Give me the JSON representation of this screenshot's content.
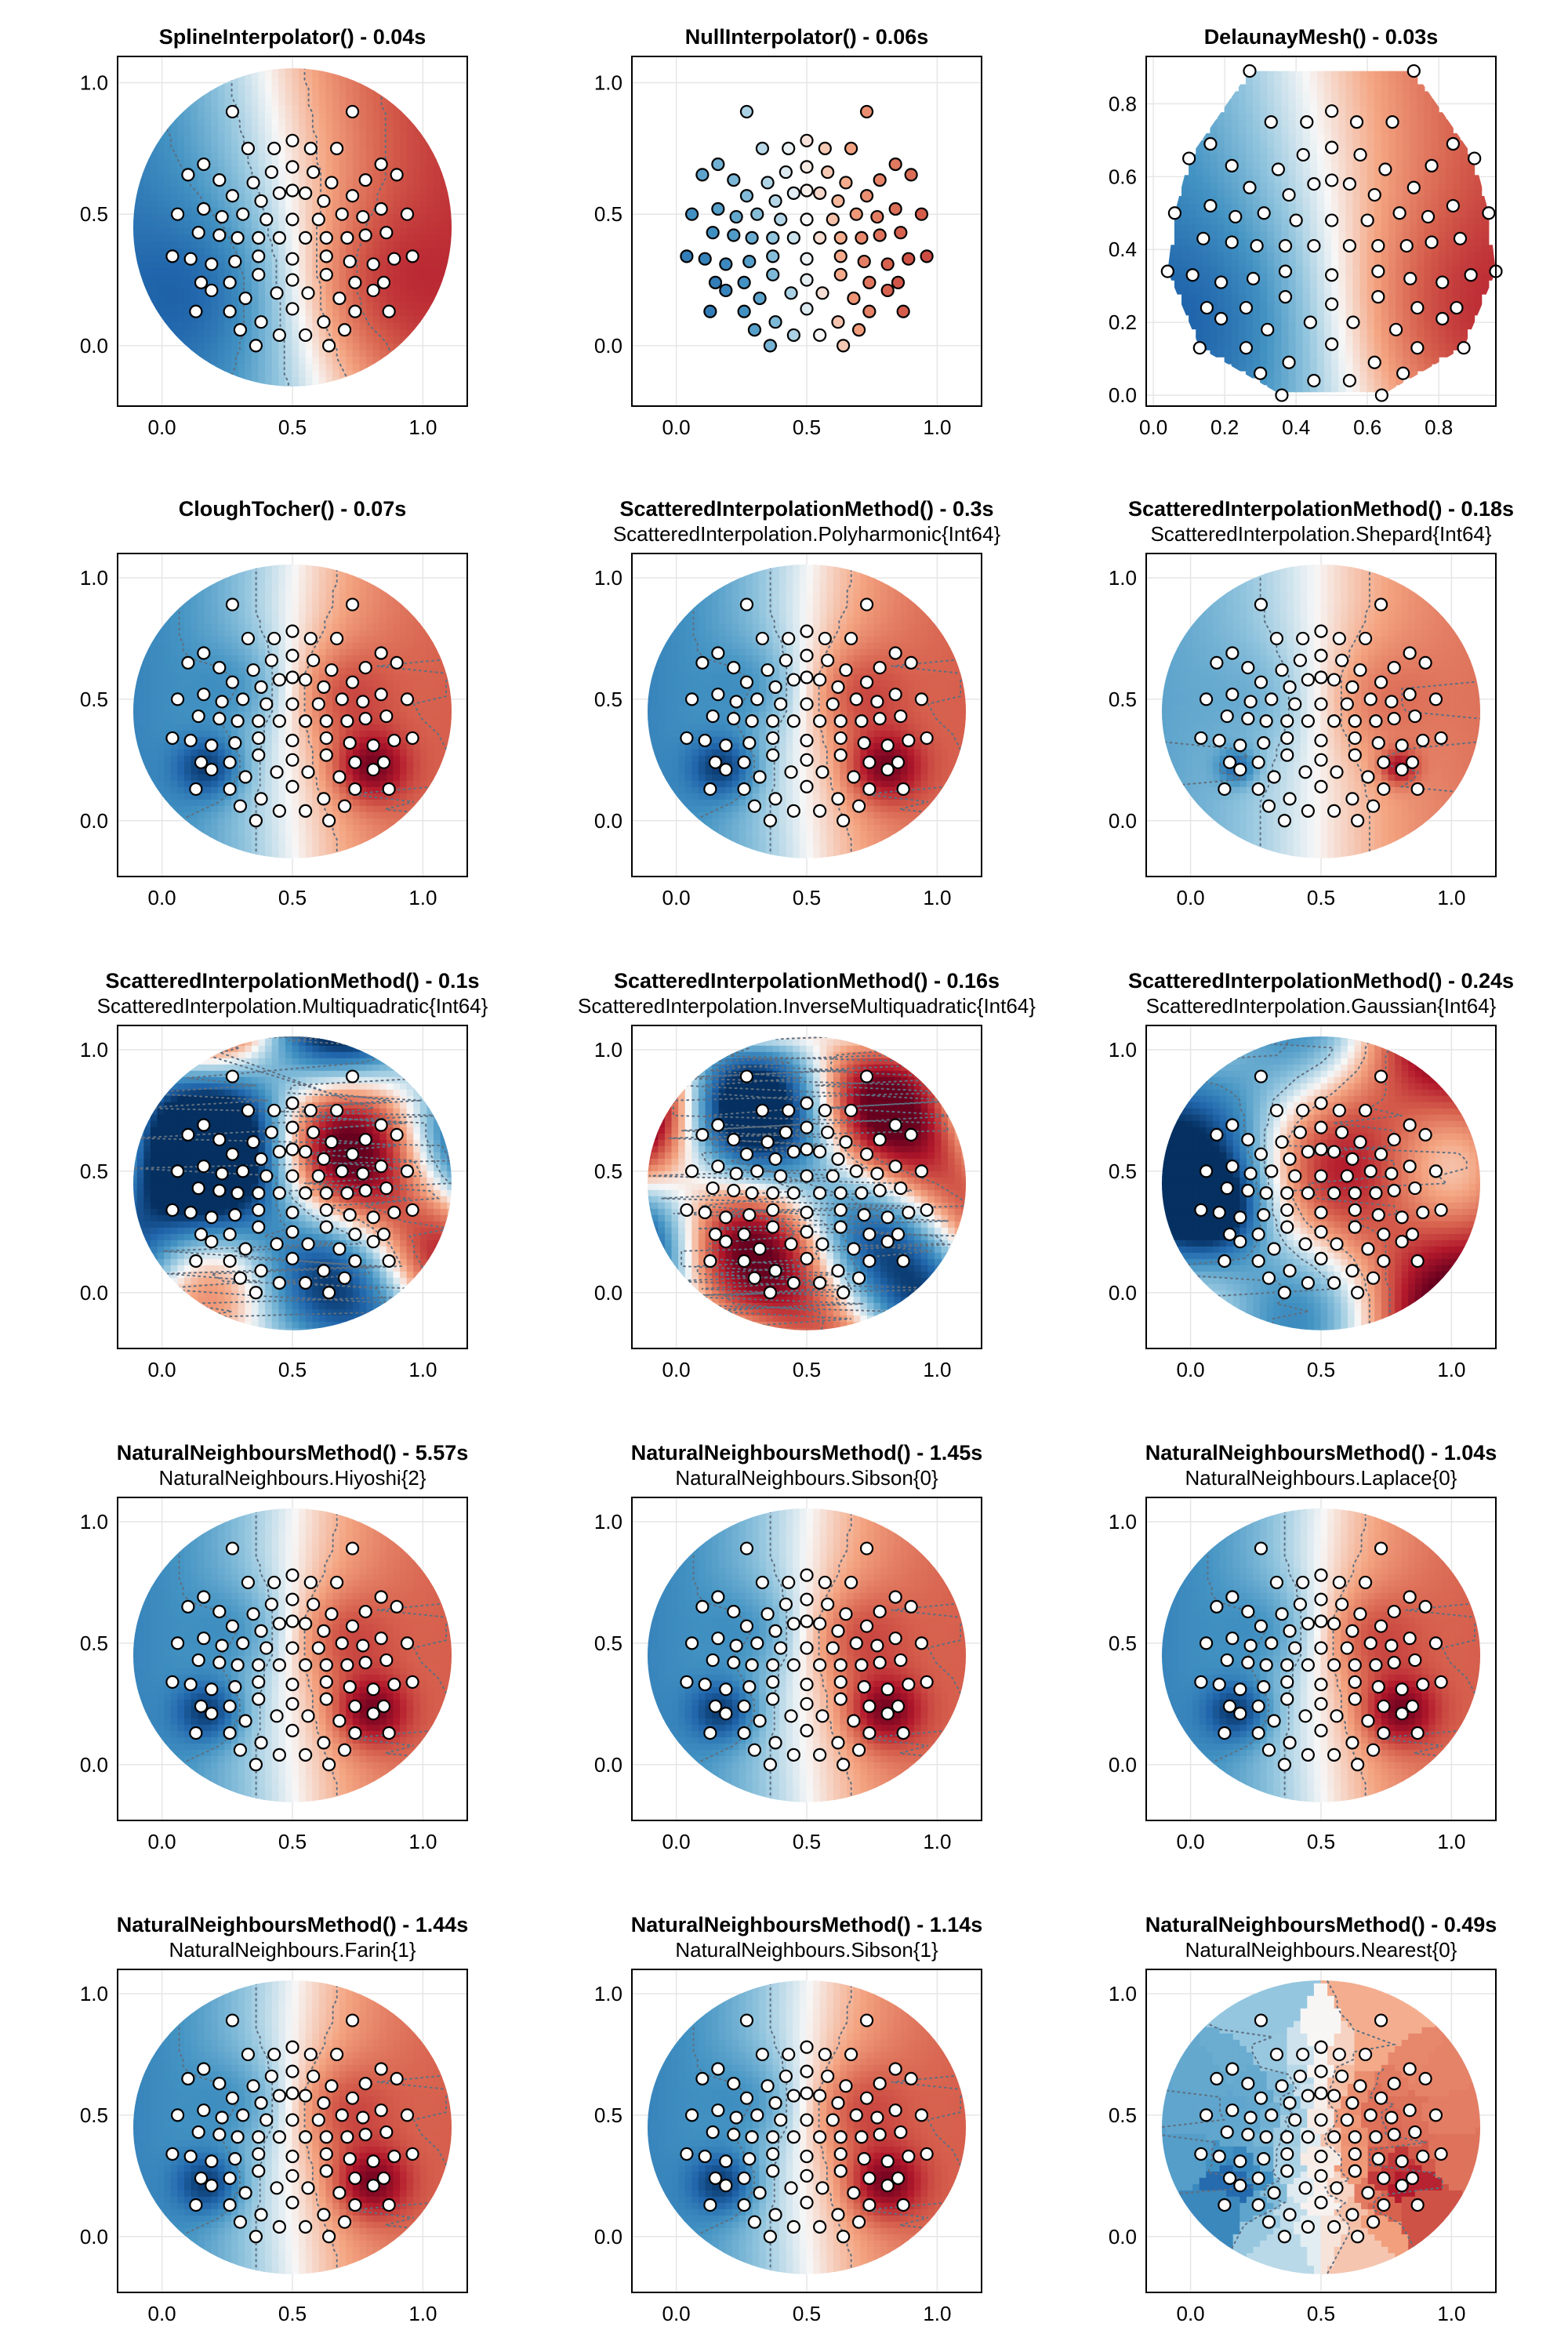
{
  "colors": {
    "blue_deep": "#053061",
    "blue": "#2166ac",
    "blue_mid": "#4393c3",
    "blue_light": "#92c5de",
    "neutral": "#f7f7f7",
    "red_light": "#f4a582",
    "red_mid": "#d6604d",
    "red": "#b2182b",
    "red_deep": "#67001f"
  },
  "electrodes": [
    [
      0.27,
      0.89
    ],
    [
      0.73,
      0.89
    ],
    [
      0.16,
      0.69
    ],
    [
      0.84,
      0.69
    ],
    [
      0.1,
      0.65
    ],
    [
      0.9,
      0.65
    ],
    [
      0.22,
      0.63
    ],
    [
      0.78,
      0.63
    ],
    [
      0.33,
      0.75
    ],
    [
      0.67,
      0.75
    ],
    [
      0.43,
      0.75
    ],
    [
      0.57,
      0.75
    ],
    [
      0.5,
      0.78
    ],
    [
      0.27,
      0.57
    ],
    [
      0.73,
      0.57
    ],
    [
      0.35,
      0.62
    ],
    [
      0.65,
      0.62
    ],
    [
      0.42,
      0.66
    ],
    [
      0.58,
      0.66
    ],
    [
      0.5,
      0.68
    ],
    [
      0.38,
      0.55
    ],
    [
      0.62,
      0.55
    ],
    [
      0.45,
      0.58
    ],
    [
      0.55,
      0.58
    ],
    [
      0.5,
      0.59
    ],
    [
      0.06,
      0.5
    ],
    [
      0.94,
      0.5
    ],
    [
      0.16,
      0.52
    ],
    [
      0.84,
      0.52
    ],
    [
      0.23,
      0.49
    ],
    [
      0.77,
      0.49
    ],
    [
      0.31,
      0.5
    ],
    [
      0.69,
      0.5
    ],
    [
      0.4,
      0.48
    ],
    [
      0.6,
      0.48
    ],
    [
      0.5,
      0.48
    ],
    [
      0.14,
      0.43
    ],
    [
      0.86,
      0.43
    ],
    [
      0.22,
      0.42
    ],
    [
      0.78,
      0.42
    ],
    [
      0.29,
      0.41
    ],
    [
      0.71,
      0.41
    ],
    [
      0.37,
      0.41
    ],
    [
      0.63,
      0.41
    ],
    [
      0.45,
      0.41
    ],
    [
      0.55,
      0.41
    ],
    [
      0.04,
      0.34
    ],
    [
      0.96,
      0.34
    ],
    [
      0.11,
      0.33
    ],
    [
      0.89,
      0.33
    ],
    [
      0.19,
      0.31
    ],
    [
      0.81,
      0.31
    ],
    [
      0.28,
      0.32
    ],
    [
      0.72,
      0.32
    ],
    [
      0.37,
      0.34
    ],
    [
      0.63,
      0.34
    ],
    [
      0.5,
      0.33
    ],
    [
      0.15,
      0.24
    ],
    [
      0.85,
      0.24
    ],
    [
      0.26,
      0.24
    ],
    [
      0.74,
      0.24
    ],
    [
      0.37,
      0.27
    ],
    [
      0.63,
      0.27
    ],
    [
      0.5,
      0.25
    ],
    [
      0.19,
      0.21
    ],
    [
      0.81,
      0.21
    ],
    [
      0.32,
      0.18
    ],
    [
      0.68,
      0.18
    ],
    [
      0.44,
      0.2
    ],
    [
      0.56,
      0.2
    ],
    [
      0.13,
      0.13
    ],
    [
      0.87,
      0.13
    ],
    [
      0.26,
      0.13
    ],
    [
      0.74,
      0.13
    ],
    [
      0.5,
      0.14
    ],
    [
      0.38,
      0.09
    ],
    [
      0.62,
      0.09
    ],
    [
      0.3,
      0.06
    ],
    [
      0.7,
      0.06
    ],
    [
      0.45,
      0.04
    ],
    [
      0.55,
      0.04
    ],
    [
      0.36,
      0.0
    ],
    [
      0.64,
      0.0
    ]
  ],
  "axes_common": {
    "xticks": [
      "0.0",
      "0.5",
      "1.0"
    ],
    "yticks": [
      "0.0",
      "0.5",
      "1.0"
    ],
    "xlim": [
      -0.17,
      1.17
    ],
    "ylim": [
      -0.23,
      1.1
    ]
  },
  "chart_data": [
    {
      "type": "heatmap",
      "title": "SplineInterpolator() - 0.04s",
      "subtitle": "",
      "render": "circle",
      "field": "smooth",
      "contours": true,
      "grid": true
    },
    {
      "type": "scatter",
      "title": "NullInterpolator() - 0.06s",
      "subtitle": "",
      "render": "none",
      "field": "smooth",
      "contours": false,
      "grid": true,
      "filled_markers": true
    },
    {
      "type": "heatmap",
      "title": "DelaunayMesh() - 0.03s",
      "subtitle": "",
      "render": "hull",
      "field": "smooth",
      "contours": false,
      "grid": true,
      "xlim": [
        -0.02,
        0.96
      ],
      "ylim": [
        -0.03,
        0.93
      ],
      "xticks": [
        "0.0",
        "0.2",
        "0.4",
        "0.6",
        "0.8"
      ],
      "yticks": [
        "0.0",
        "0.2",
        "0.4",
        "0.6",
        "0.8"
      ]
    },
    {
      "type": "heatmap",
      "title": "CloughTocher() - 0.07s",
      "subtitle": "",
      "render": "circle",
      "field": "peaky",
      "contours": true,
      "grid": true
    },
    {
      "type": "heatmap",
      "title": "ScatteredInterpolationMethod() - 0.3s",
      "subtitle": "ScatteredInterpolation.Polyharmonic{Int64}",
      "render": "circle",
      "field": "peaky",
      "contours": true,
      "grid": true
    },
    {
      "type": "heatmap",
      "title": "ScatteredInterpolationMethod() - 0.18s",
      "subtitle": "ScatteredInterpolation.Shepard{Int64}",
      "render": "circle",
      "field": "shepard",
      "contours": true,
      "grid": true
    },
    {
      "type": "heatmap",
      "title": "ScatteredInterpolationMethod() - 0.1s",
      "subtitle": "ScatteredInterpolation.Multiquadratic{Int64}",
      "render": "circle",
      "field": "multiquad",
      "contours": true,
      "grid": true
    },
    {
      "type": "heatmap",
      "title": "ScatteredInterpolationMethod() - 0.16s",
      "subtitle": "ScatteredInterpolation.InverseMultiquadratic{Int64}",
      "render": "circle",
      "field": "invmulti",
      "contours": true,
      "grid": true
    },
    {
      "type": "heatmap",
      "title": "ScatteredInterpolationMethod() - 0.24s",
      "subtitle": "ScatteredInterpolation.Gaussian{Int64}",
      "render": "circle",
      "field": "gauss",
      "contours": true,
      "grid": true
    },
    {
      "type": "heatmap",
      "title": "NaturalNeighboursMethod() - 5.57s",
      "subtitle": "NaturalNeighbours.Hiyoshi{2}",
      "render": "circle",
      "field": "peaky",
      "contours": true,
      "grid": true
    },
    {
      "type": "heatmap",
      "title": "NaturalNeighboursMethod() - 1.45s",
      "subtitle": "NaturalNeighbours.Sibson{0}",
      "render": "circle",
      "field": "peaky",
      "contours": true,
      "grid": true
    },
    {
      "type": "heatmap",
      "title": "NaturalNeighboursMethod() - 1.04s",
      "subtitle": "NaturalNeighbours.Laplace{0}",
      "render": "circle",
      "field": "peaky",
      "contours": true,
      "grid": true
    },
    {
      "type": "heatmap",
      "title": "NaturalNeighboursMethod() - 1.44s",
      "subtitle": "NaturalNeighbours.Farin{1}",
      "render": "circle",
      "field": "peaky",
      "contours": true,
      "grid": true
    },
    {
      "type": "heatmap",
      "title": "NaturalNeighboursMethod() - 1.14s",
      "subtitle": "NaturalNeighbours.Sibson{1}",
      "render": "circle",
      "field": "peaky",
      "contours": true,
      "grid": true
    },
    {
      "type": "heatmap",
      "title": "NaturalNeighboursMethod() - 0.49s",
      "subtitle": "NaturalNeighbours.Nearest{0}",
      "render": "circle",
      "field": "nearest",
      "contours": true,
      "grid": true
    }
  ]
}
